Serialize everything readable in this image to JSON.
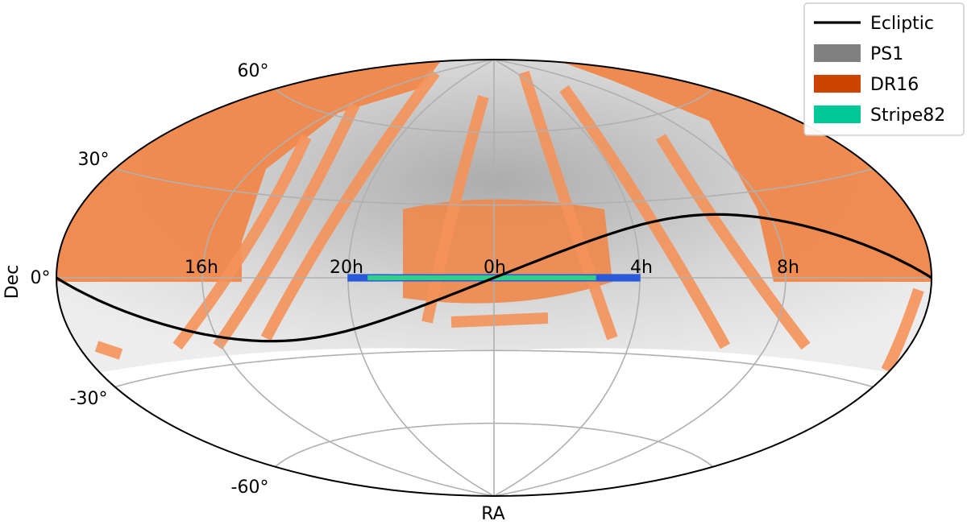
{
  "chart_data": {
    "type": "scatter",
    "projection": "Aitoff",
    "xlabel": "RA",
    "ylabel": "Dec",
    "ra_tick_labels": [
      "16h",
      "20h",
      "0h",
      "4h",
      "8h"
    ],
    "dec_tick_labels": [
      "60°",
      "30°",
      "0°",
      "-30°",
      "-60°"
    ],
    "ra_ticks_hours": [
      16,
      20,
      0,
      4,
      8
    ],
    "dec_ticks_deg": [
      60,
      30,
      0,
      -30,
      -60
    ],
    "grid": true,
    "legend_position": "top-right",
    "series": [
      {
        "name": "Ecliptic",
        "kind": "line",
        "color": "#000000",
        "description_points_ra_deg": [
          -180,
          -90,
          0,
          90,
          180
        ],
        "values_dec_deg": [
          0,
          -23.4,
          0,
          23.4,
          0
        ]
      },
      {
        "name": "PS1",
        "kind": "coverage",
        "color": "#808080",
        "dec_min": -30,
        "dec_max": 90
      },
      {
        "name": "DR16",
        "kind": "coverage",
        "color": "#cc4400"
      },
      {
        "name": "Stripe82",
        "kind": "coverage",
        "color": "#00c896",
        "ra_range_deg": [
          -60,
          60
        ],
        "dec_range_deg": [
          -1.25,
          1.25
        ]
      }
    ]
  }
}
